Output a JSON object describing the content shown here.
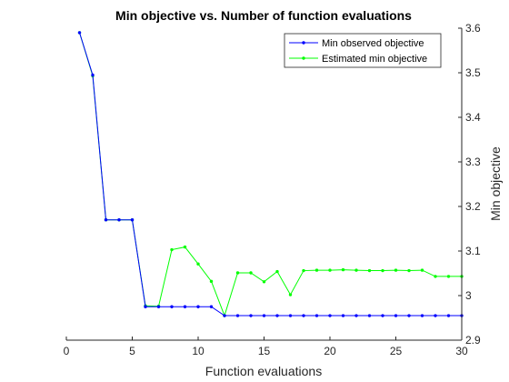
{
  "chart_data": {
    "type": "line",
    "title": "Min objective vs. Number of function evaluations",
    "xlabel": "Function evaluations",
    "ylabel": "Min objective",
    "xlim": [
      0,
      30
    ],
    "ylim": [
      2.9,
      3.6
    ],
    "x_ticks": [
      0,
      5,
      10,
      15,
      20,
      25,
      30
    ],
    "y_ticks": [
      2.9,
      3.0,
      3.1,
      3.2,
      3.3,
      3.4,
      3.5,
      3.6
    ],
    "x_tick_labels": [
      "0",
      "5",
      "10",
      "15",
      "20",
      "25",
      "30"
    ],
    "y_tick_labels": [
      "2.9",
      "3",
      "3.1",
      "3.2",
      "3.3",
      "3.4",
      "3.5",
      "3.6"
    ],
    "y_axis_side": "right",
    "grid": false,
    "legend_position": "top-right",
    "x": [
      1,
      2,
      3,
      4,
      5,
      6,
      7,
      8,
      9,
      10,
      11,
      12,
      13,
      14,
      15,
      16,
      17,
      18,
      19,
      20,
      21,
      22,
      23,
      24,
      25,
      26,
      27,
      28,
      29,
      30
    ],
    "series": [
      {
        "name": "Min observed objective",
        "color": "#0000ff",
        "values": [
          3.59,
          3.495,
          3.17,
          3.17,
          3.17,
          2.975,
          2.975,
          2.975,
          2.975,
          2.975,
          2.975,
          2.955,
          2.955,
          2.955,
          2.955,
          2.955,
          2.955,
          2.955,
          2.955,
          2.955,
          2.955,
          2.955,
          2.955,
          2.955,
          2.955,
          2.955,
          2.955,
          2.955,
          2.955,
          2.955
        ]
      },
      {
        "name": "Estimated min objective",
        "color": "#00ff00",
        "values": [
          3.59,
          3.493,
          3.17,
          3.17,
          3.17,
          2.977,
          2.976,
          3.103,
          3.109,
          3.071,
          3.032,
          2.955,
          3.051,
          3.051,
          3.031,
          3.054,
          3.002,
          3.056,
          3.057,
          3.057,
          3.058,
          3.057,
          3.056,
          3.056,
          3.057,
          3.056,
          3.057,
          3.043,
          3.043,
          3.043
        ]
      }
    ]
  }
}
